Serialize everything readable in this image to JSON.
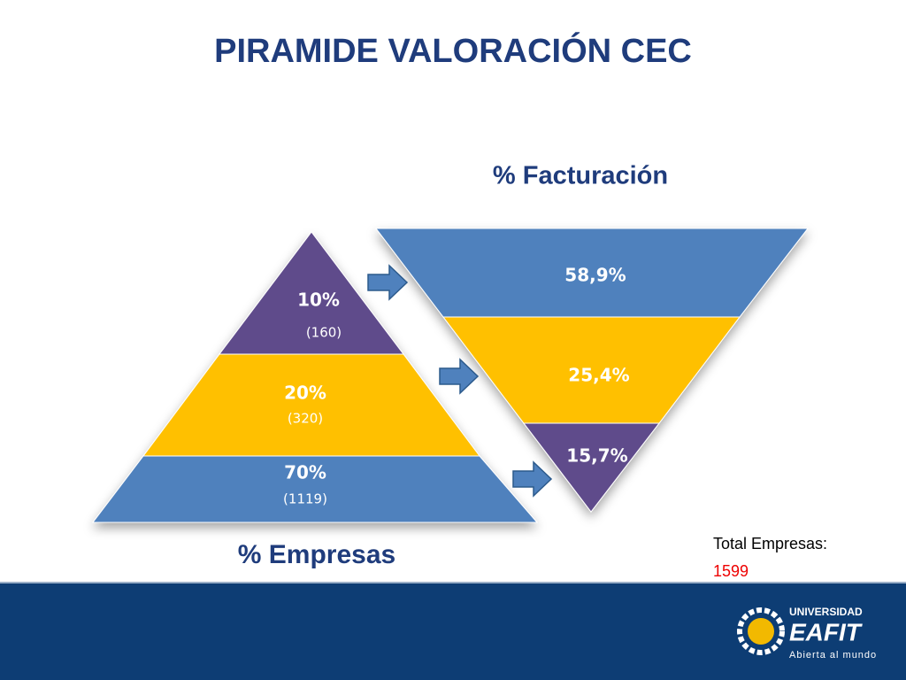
{
  "title": "PIRAMIDE VALORACIÓN CEC",
  "pyramid_companies": {
    "label": "% Empresas",
    "levels": [
      {
        "percent": "10%",
        "count": "(160)"
      },
      {
        "percent": "20%",
        "count": "(320)"
      },
      {
        "percent": "70%",
        "count": "(1119)"
      }
    ]
  },
  "pyramid_revenue": {
    "label": "% Facturación",
    "levels": [
      "58,9%",
      "25,4%",
      "15,7%"
    ]
  },
  "total": {
    "label": "Total Empresas:",
    "value": "1599"
  },
  "logo": {
    "name": "UNIVERSIDAD",
    "brand": "EAFIT",
    "tagline": "Abierta al mundo"
  }
}
